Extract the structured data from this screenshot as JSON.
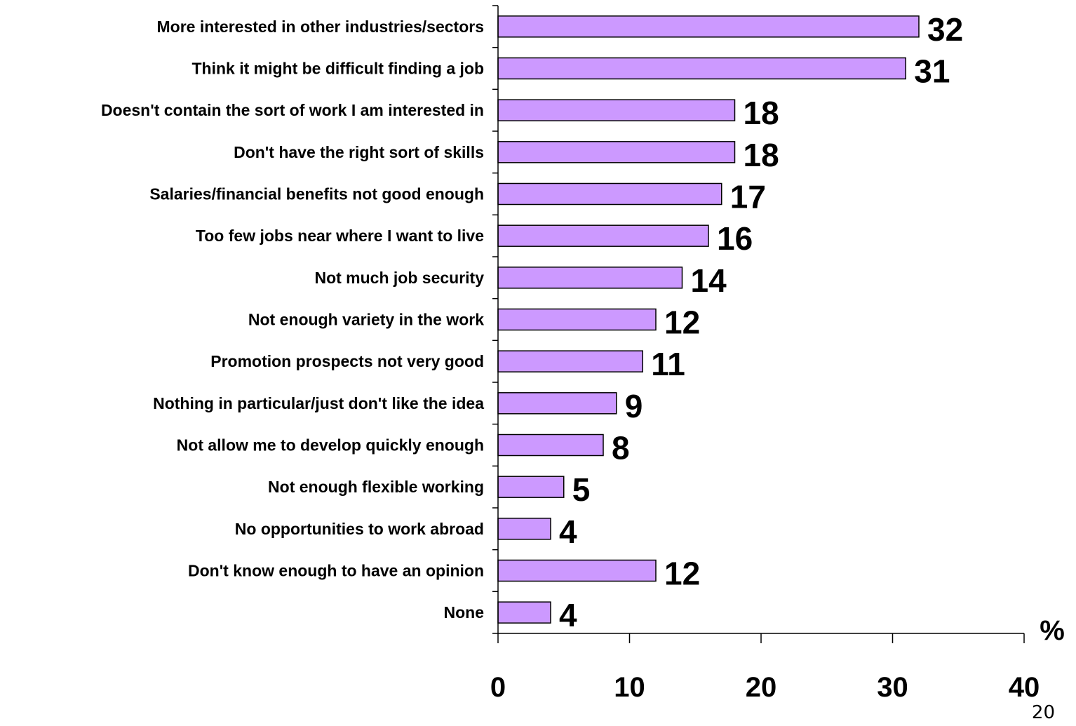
{
  "chart_data": {
    "type": "bar",
    "orientation": "horizontal",
    "categories": [
      "More interested in other industries/sectors",
      "Think it might be difficult finding a job",
      "Doesn't contain the sort of work I am interested in",
      "Don't have the right sort of skills",
      "Salaries/financial benefits not good enough",
      "Too few jobs near where I want to live",
      "Not much job security",
      "Not enough variety in the work",
      "Promotion prospects not very good",
      "Nothing in particular/just don't like the idea",
      "Not allow me to develop quickly enough",
      "Not enough flexible working",
      "No opportunities to work abroad",
      "Don't know enough to have an opinion",
      "None"
    ],
    "values": [
      32,
      31,
      18,
      18,
      17,
      16,
      14,
      12,
      11,
      9,
      8,
      5,
      4,
      12,
      4
    ],
    "xlim": [
      0,
      40
    ],
    "xticks": [
      0,
      10,
      20,
      30,
      40
    ],
    "xlabel": "%",
    "grid": false,
    "legend": "none",
    "colors": {
      "bar_fill": "#cc99ff",
      "bar_stroke": "#000000"
    }
  },
  "page_number": "20"
}
